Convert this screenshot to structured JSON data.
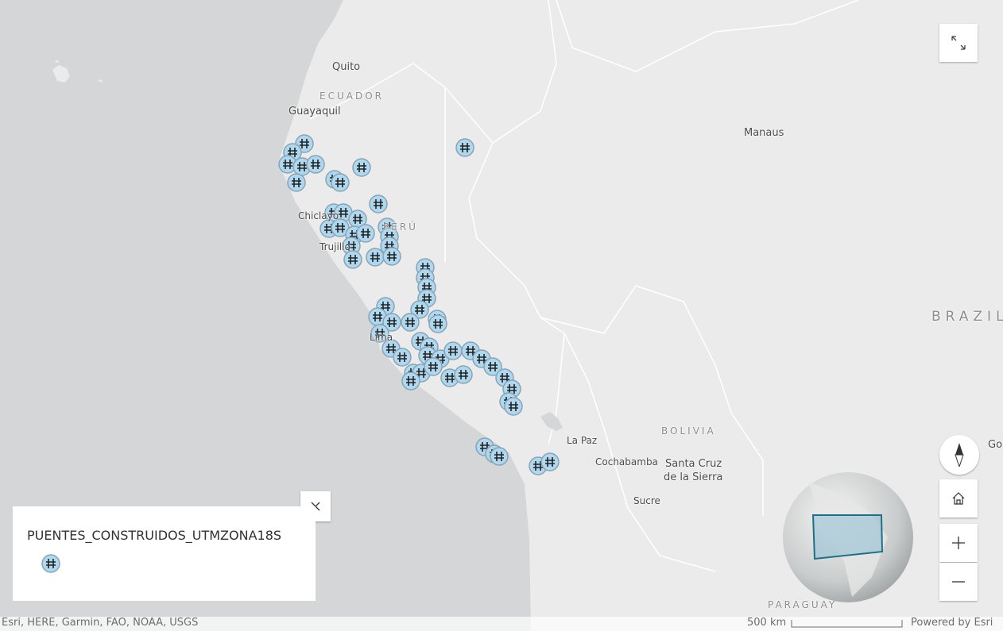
{
  "map": {
    "labels": [
      "Quito",
      "ECUADOR",
      "Guayaquil",
      "Manaus",
      "Chiclayo",
      "PERÚ",
      "Trujillo",
      "Lima",
      "BRAZIL",
      "Go",
      "BOLIVIA",
      "La Paz",
      "Cochabamba",
      "Santa Cruz",
      "de la Sierra",
      "Sucre",
      "PARAGUAY"
    ],
    "legend": {
      "title": "PUENTES_CONSTRUIDOS_UTMZONA18S"
    },
    "attribution": "Esri, HERE, Garmin, FAO, NOAA, USGS",
    "scale_label": "500 km",
    "powered_by": "Powered by Esri"
  }
}
